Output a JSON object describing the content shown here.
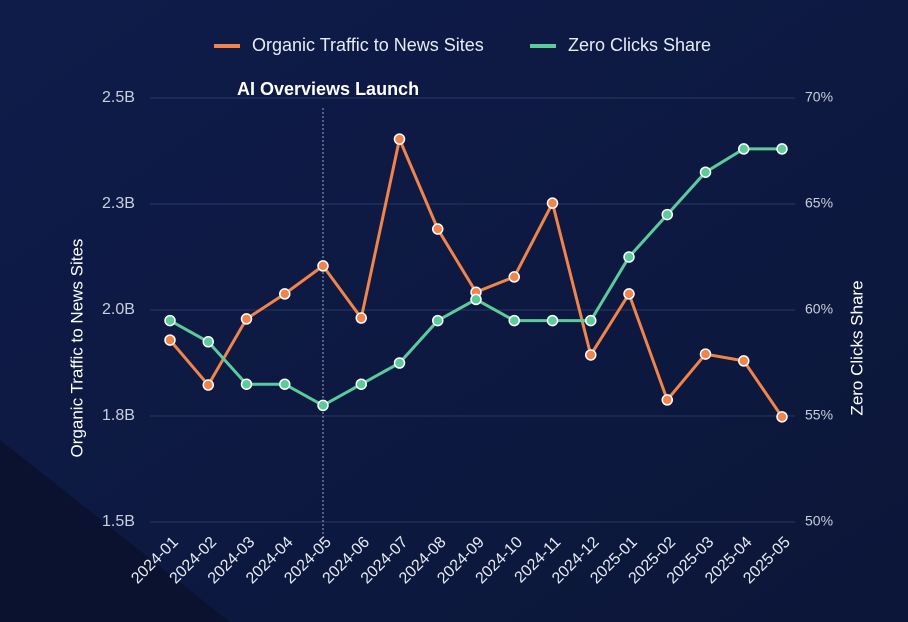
{
  "chart_data": {
    "type": "line",
    "categories": [
      "2024-01",
      "2024-02",
      "2024-03",
      "2024-04",
      "2024-05",
      "2024-06",
      "2024-07",
      "2024-08",
      "2024-09",
      "2024-10",
      "2024-11",
      "2024-12",
      "2025-01",
      "2025-02",
      "2025-03",
      "2025-04",
      "2025-05"
    ],
    "series": [
      {
        "name": "Organic Traffic to News Sites",
        "color": "#f0844a",
        "values": [
          1929000000,
          1823000000,
          1979000000,
          2038000000,
          2104000000,
          1981000000,
          2403000000,
          2191000000,
          2042000000,
          2078000000,
          2252000000,
          1894000000,
          2038000000,
          1788000000,
          1896000000,
          1880000000,
          1748000000
        ]
      },
      {
        "name": "Zero Clicks Share",
        "color": "#5ccb9b",
        "axis": "y2",
        "values": [
          59.5,
          58.5,
          56.5,
          56.5,
          55.5,
          56.5,
          57.5,
          59.5,
          60.5,
          59.5,
          59.5,
          59.5,
          62.5,
          64.5,
          66.5,
          67.6,
          67.6
        ]
      }
    ],
    "y_label": "Organic Traffic to News Sites",
    "y2_label": "Zero Clicks Share",
    "ylim": [
      1500000000,
      2500000000
    ],
    "yticks": [
      {
        "value": 1500000000,
        "label": "1.5B"
      },
      {
        "value": 1750000000,
        "label": "1.8B"
      },
      {
        "value": 2000000000,
        "label": "2.0B"
      },
      {
        "value": 2250000000,
        "label": "2.3B"
      },
      {
        "value": 2500000000,
        "label": "2.5B"
      }
    ],
    "y2lim": [
      50,
      70
    ],
    "y2ticks": [
      {
        "value": 50,
        "label": "50%"
      },
      {
        "value": 55,
        "label": "55%"
      },
      {
        "value": 60,
        "label": "60%"
      },
      {
        "value": 65,
        "label": "65%"
      },
      {
        "value": 70,
        "label": "70%"
      }
    ],
    "annotation": {
      "text": "AI Overviews Launch",
      "category": "2024-05"
    },
    "grid": true,
    "legend": "top"
  }
}
